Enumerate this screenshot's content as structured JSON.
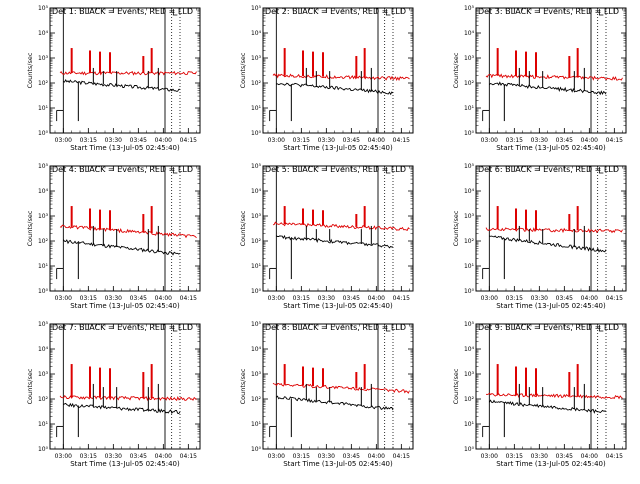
{
  "figure": {
    "grid": "3x3",
    "x_axis_label": "Start Time (13-Jul-05 02:45:40)",
    "y_axis_label": "Counts/sec",
    "x_tick_labels": [
      "03:00",
      "03:15",
      "03:30",
      "03:45",
      "04:00",
      "04:15"
    ],
    "y_tick_exponents": [
      "10⁰",
      "10¹",
      "10²",
      "10³",
      "10⁴",
      "10⁵"
    ],
    "colors": {
      "events": "#000000",
      "lld": "#dd0000"
    }
  },
  "chart_data": [
    {
      "type": "line",
      "title": "Det 1: BLACK = Events, RED = LLD",
      "xlabel": "Start Time (13-Jul-05 02:45:40)",
      "ylabel": "Counts/sec",
      "y_scale": "log",
      "ylim": [
        1,
        100000
      ],
      "xlim": [
        "02:52",
        "04:22"
      ],
      "x_ticks": [
        "03:00",
        "03:15",
        "03:30",
        "03:45",
        "04:00",
        "04:15"
      ],
      "series": [
        {
          "name": "BLACK = Events",
          "base_start": 120,
          "base_end": 50,
          "spikes": [
            3,
            400,
            300,
            300,
            300,
            400
          ]
        },
        {
          "name": "RED = LLD",
          "base_start": 250,
          "base_end": 250,
          "spikes": [
            2500,
            2000,
            1800,
            1700,
            1200,
            2500
          ]
        }
      ],
      "vlines_solid": [
        "03:00",
        "04:01"
      ],
      "vlines_dotted": [
        "04:05",
        "04:10"
      ]
    },
    {
      "type": "line",
      "title": "Det 2: BLACK = Events, RED = LLD",
      "xlabel": "Start Time (13-Jul-05 02:45:40)",
      "ylabel": "Counts/sec",
      "y_scale": "log",
      "ylim": [
        1,
        100000
      ],
      "xlim": [
        "02:52",
        "04:22"
      ],
      "x_ticks": [
        "03:00",
        "03:15",
        "03:30",
        "03:45",
        "04:00",
        "04:15"
      ],
      "series": [
        {
          "name": "BLACK = Events",
          "base_start": 100,
          "base_end": 40,
          "spikes": [
            3,
            400,
            300,
            300,
            300,
            400
          ]
        },
        {
          "name": "RED = LLD",
          "base_start": 200,
          "base_end": 150,
          "spikes": [
            2500,
            2000,
            1800,
            1700,
            1200,
            2500
          ]
        }
      ],
      "vlines_solid": [
        "03:00",
        "04:01"
      ],
      "vlines_dotted": [
        "04:05",
        "04:10"
      ]
    },
    {
      "type": "line",
      "title": "Det 3: BLACK = Events, RED = LLD",
      "xlabel": "Start Time (13-Jul-05 02:45:40)",
      "ylabel": "Counts/sec",
      "y_scale": "log",
      "ylim": [
        1,
        100000
      ],
      "xlim": [
        "02:52",
        "04:22"
      ],
      "x_ticks": [
        "03:00",
        "03:15",
        "03:30",
        "03:45",
        "04:00",
        "04:15"
      ],
      "series": [
        {
          "name": "BLACK = Events",
          "base_start": 100,
          "base_end": 40,
          "spikes": [
            3,
            400,
            300,
            300,
            300,
            400
          ]
        },
        {
          "name": "RED = LLD",
          "base_start": 200,
          "base_end": 150,
          "spikes": [
            2500,
            2000,
            1800,
            1700,
            1200,
            2500
          ]
        }
      ],
      "vlines_solid": [
        "03:00",
        "04:01"
      ],
      "vlines_dotted": [
        "04:05",
        "04:10"
      ]
    },
    {
      "type": "line",
      "title": "Det 4: BLACK = Events, RED = LLD",
      "xlabel": "Start Time (13-Jul-05 02:45:40)",
      "ylabel": "Counts/sec",
      "y_scale": "log",
      "ylim": [
        1,
        100000
      ],
      "xlim": [
        "02:52",
        "04:22"
      ],
      "x_ticks": [
        "03:00",
        "03:15",
        "03:30",
        "03:45",
        "04:00",
        "04:15"
      ],
      "series": [
        {
          "name": "BLACK = Events",
          "base_start": 100,
          "base_end": 30,
          "spikes": [
            3,
            400,
            300,
            300,
            300,
            400
          ]
        },
        {
          "name": "RED = LLD",
          "base_start": 400,
          "base_end": 150,
          "spikes": [
            2500,
            2000,
            1800,
            1700,
            1200,
            2500
          ]
        }
      ],
      "vlines_solid": [
        "03:00",
        "04:01"
      ],
      "vlines_dotted": [
        "04:05",
        "04:10"
      ]
    },
    {
      "type": "line",
      "title": "Det 5: BLACK = Events, RED = LLD",
      "xlabel": "Start Time (13-Jul-05 02:45:40)",
      "ylabel": "Counts/sec",
      "y_scale": "log",
      "ylim": [
        1,
        100000
      ],
      "xlim": [
        "02:52",
        "04:22"
      ],
      "x_ticks": [
        "03:00",
        "03:15",
        "03:30",
        "03:45",
        "04:00",
        "04:15"
      ],
      "series": [
        {
          "name": "BLACK = Events",
          "base_start": 150,
          "base_end": 60,
          "spikes": [
            3,
            400,
            300,
            300,
            300,
            400
          ]
        },
        {
          "name": "RED = LLD",
          "base_start": 500,
          "base_end": 300,
          "spikes": [
            2500,
            2000,
            1800,
            1700,
            1200,
            2500
          ]
        }
      ],
      "vlines_solid": [
        "03:00",
        "04:01"
      ],
      "vlines_dotted": [
        "04:05",
        "04:10"
      ]
    },
    {
      "type": "line",
      "title": "Det 6: BLACK = Events, RED = LLD",
      "xlabel": "Start Time (13-Jul-05 02:45:40)",
      "ylabel": "Counts/sec",
      "y_scale": "log",
      "ylim": [
        1,
        100000
      ],
      "xlim": [
        "02:52",
        "04:22"
      ],
      "x_ticks": [
        "03:00",
        "03:15",
        "03:30",
        "03:45",
        "04:00",
        "04:15"
      ],
      "series": [
        {
          "name": "BLACK = Events",
          "base_start": 150,
          "base_end": 40,
          "spikes": [
            3,
            400,
            300,
            300,
            300,
            400
          ]
        },
        {
          "name": "RED = LLD",
          "base_start": 300,
          "base_end": 250,
          "spikes": [
            2500,
            2000,
            1800,
            1700,
            1200,
            2500
          ]
        }
      ],
      "vlines_solid": [
        "03:00",
        "04:01"
      ],
      "vlines_dotted": [
        "04:05",
        "04:10"
      ]
    },
    {
      "type": "line",
      "title": "Det 7: BLACK = Events, RED = LLD",
      "xlabel": "Start Time (13-Jul-05 02:45:40)",
      "ylabel": "Counts/sec",
      "y_scale": "log",
      "ylim": [
        1,
        100000
      ],
      "xlim": [
        "02:52",
        "04:22"
      ],
      "x_ticks": [
        "03:00",
        "03:15",
        "03:30",
        "03:45",
        "04:00",
        "04:15"
      ],
      "series": [
        {
          "name": "BLACK = Events",
          "base_start": 60,
          "base_end": 30,
          "spikes": [
            3,
            400,
            300,
            300,
            300,
            400
          ]
        },
        {
          "name": "RED = LLD",
          "base_start": 120,
          "base_end": 100,
          "spikes": [
            2500,
            2000,
            1800,
            1700,
            1200,
            2500
          ]
        }
      ],
      "vlines_solid": [
        "03:00",
        "04:01"
      ],
      "vlines_dotted": [
        "04:05",
        "04:10"
      ]
    },
    {
      "type": "line",
      "title": "Det 8: BLACK = Events, RED = LLD",
      "xlabel": "Start Time (13-Jul-05 02:45:40)",
      "ylabel": "Counts/sec",
      "y_scale": "log",
      "ylim": [
        1,
        100000
      ],
      "xlim": [
        "02:52",
        "04:22"
      ],
      "x_ticks": [
        "03:00",
        "03:15",
        "03:30",
        "03:45",
        "04:00",
        "04:15"
      ],
      "series": [
        {
          "name": "BLACK = Events",
          "base_start": 120,
          "base_end": 40,
          "spikes": [
            3,
            400,
            300,
            300,
            300,
            400
          ]
        },
        {
          "name": "RED = LLD",
          "base_start": 400,
          "base_end": 200,
          "spikes": [
            2500,
            2000,
            1800,
            1700,
            1200,
            2500
          ]
        }
      ],
      "vlines_solid": [
        "03:00",
        "04:01"
      ],
      "vlines_dotted": [
        "04:05",
        "04:10"
      ]
    },
    {
      "type": "line",
      "title": "Det 9: BLACK = Events, RED = LLD",
      "xlabel": "Start Time (13-Jul-05 02:45:40)",
      "ylabel": "Counts/sec",
      "y_scale": "log",
      "ylim": [
        1,
        100000
      ],
      "xlim": [
        "02:52",
        "04:22"
      ],
      "x_ticks": [
        "03:00",
        "03:15",
        "03:30",
        "03:45",
        "04:00",
        "04:15"
      ],
      "series": [
        {
          "name": "BLACK = Events",
          "base_start": 80,
          "base_end": 30,
          "spikes": [
            3,
            400,
            300,
            300,
            300,
            400
          ]
        },
        {
          "name": "RED = LLD",
          "base_start": 150,
          "base_end": 120,
          "spikes": [
            2500,
            2000,
            1800,
            1700,
            1200,
            2500
          ]
        }
      ],
      "vlines_solid": [
        "03:00",
        "04:01"
      ],
      "vlines_dotted": [
        "04:05",
        "04:10"
      ]
    }
  ]
}
